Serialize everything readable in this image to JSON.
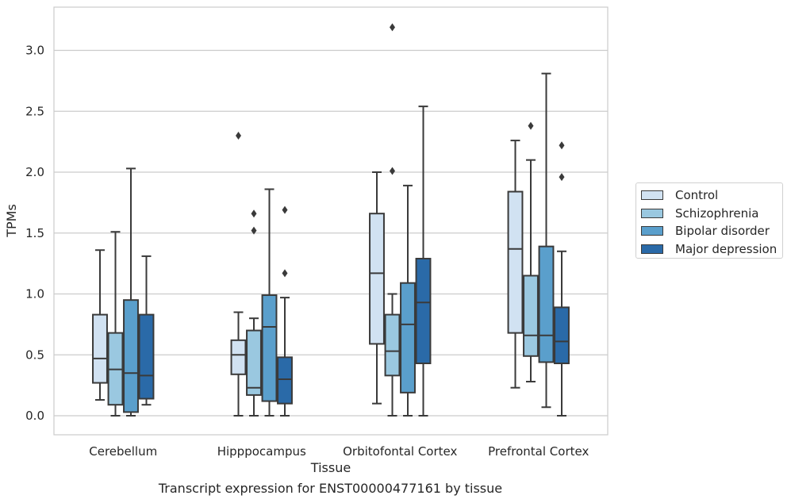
{
  "chart_data": {
    "type": "box",
    "xlabel": "Tissue",
    "ylabel": "TPMs",
    "ylim": [
      -0.15,
      3.35
    ],
    "yticks": [
      "0.0",
      "0.5",
      "1.0",
      "1.5",
      "2.0",
      "2.5",
      "3.0"
    ],
    "grid": "horizontal",
    "legend_position": "right",
    "categories": [
      "Cerebellum",
      "Hipppocampus",
      "Orbitofontal Cortex",
      "Prefrontal Cortex"
    ],
    "series": [
      {
        "name": "Control",
        "color": "#d1e2f2",
        "boxes": [
          {
            "low": 0.13,
            "q1": 0.27,
            "median": 0.47,
            "q3": 0.83,
            "high": 1.36,
            "outliers": []
          },
          {
            "low": 0.0,
            "q1": 0.34,
            "median": 0.5,
            "q3": 0.62,
            "high": 0.85,
            "outliers": [
              2.3
            ]
          },
          {
            "low": 0.1,
            "q1": 0.59,
            "median": 1.17,
            "q3": 1.66,
            "high": 2.0,
            "outliers": []
          },
          {
            "low": 0.23,
            "q1": 0.68,
            "median": 1.37,
            "q3": 1.84,
            "high": 2.26,
            "outliers": []
          }
        ]
      },
      {
        "name": "Schizophrenia",
        "color": "#9ac8e0",
        "boxes": [
          {
            "low": 0.0,
            "q1": 0.09,
            "median": 0.38,
            "q3": 0.68,
            "high": 1.51,
            "outliers": []
          },
          {
            "low": 0.0,
            "q1": 0.17,
            "median": 0.23,
            "q3": 0.7,
            "high": 0.8,
            "outliers": [
              1.52,
              1.66
            ]
          },
          {
            "low": 0.0,
            "q1": 0.33,
            "median": 0.53,
            "q3": 0.83,
            "high": 1.0,
            "outliers": [
              2.01,
              3.19
            ]
          },
          {
            "low": 0.28,
            "q1": 0.49,
            "median": 0.66,
            "q3": 1.15,
            "high": 2.1,
            "outliers": [
              2.38
            ]
          }
        ]
      },
      {
        "name": "Bipolar disorder",
        "color": "#5a9fcc",
        "boxes": [
          {
            "low": 0.0,
            "q1": 0.03,
            "median": 0.35,
            "q3": 0.95,
            "high": 2.03,
            "outliers": []
          },
          {
            "low": 0.0,
            "q1": 0.12,
            "median": 0.73,
            "q3": 0.99,
            "high": 1.86,
            "outliers": []
          },
          {
            "low": 0.0,
            "q1": 0.19,
            "median": 0.75,
            "q3": 1.09,
            "high": 1.89,
            "outliers": []
          },
          {
            "low": 0.07,
            "q1": 0.44,
            "median": 0.66,
            "q3": 1.39,
            "high": 2.81,
            "outliers": []
          }
        ]
      },
      {
        "name": "Major depression",
        "color": "#2a6aa8",
        "boxes": [
          {
            "low": 0.09,
            "q1": 0.14,
            "median": 0.33,
            "q3": 0.83,
            "high": 1.31,
            "outliers": []
          },
          {
            "low": 0.0,
            "q1": 0.1,
            "median": 0.3,
            "q3": 0.48,
            "high": 0.97,
            "outliers": [
              1.17,
              1.69
            ]
          },
          {
            "low": 0.0,
            "q1": 0.43,
            "median": 0.93,
            "q3": 1.29,
            "high": 2.54,
            "outliers": []
          },
          {
            "low": 0.0,
            "q1": 0.43,
            "median": 0.61,
            "q3": 0.89,
            "high": 1.35,
            "outliers": [
              1.96,
              2.22
            ]
          }
        ]
      }
    ]
  },
  "caption": "Transcript expression for ENST00000477161 by tissue"
}
